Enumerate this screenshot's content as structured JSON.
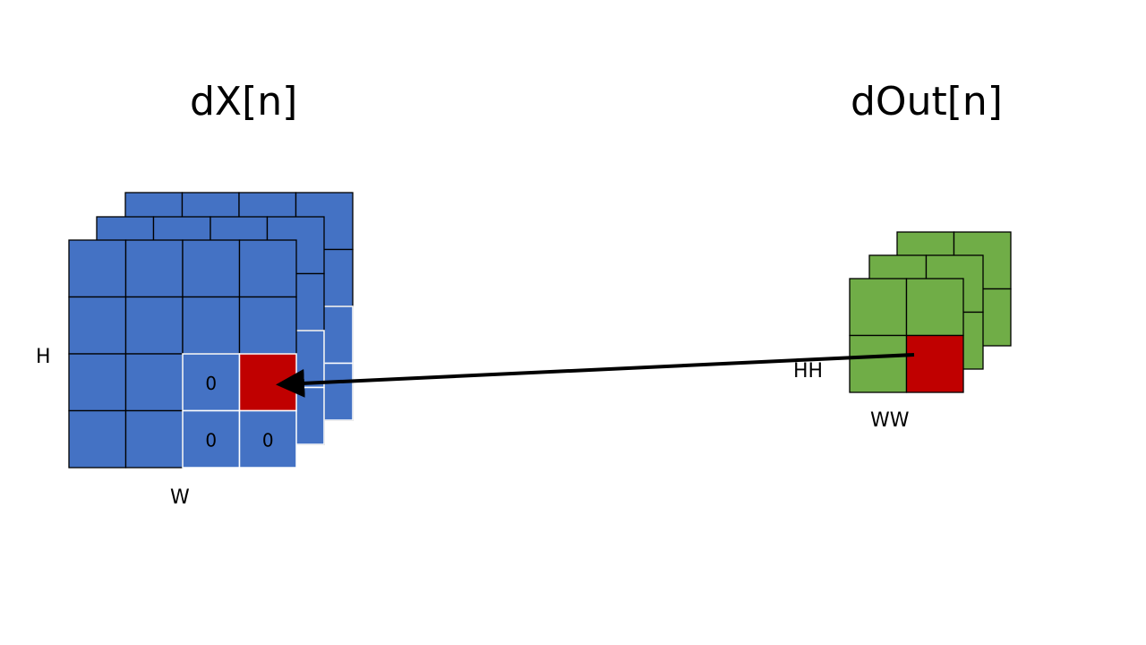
{
  "titles": {
    "left": "dX[n]",
    "right": "dOut[n]"
  },
  "dimension_labels": {
    "height": "H",
    "width": "W",
    "pool_height": "HH",
    "pool_width": "WW"
  },
  "dx_grid": {
    "rows": 4,
    "cols": 4,
    "layers": 3,
    "zero_label": "0",
    "zero_cells": [
      [
        2,
        2
      ],
      [
        3,
        2
      ],
      [
        3,
        3
      ]
    ],
    "highlight_cell": [
      2,
      3
    ]
  },
  "dout_grid": {
    "rows": 2,
    "cols": 2,
    "layers": 3,
    "highlight_cell": [
      1,
      1
    ]
  },
  "colors": {
    "dx_fill": "#4472C4",
    "dout_fill": "#70AD47",
    "highlight": "#C00000",
    "grid_line": "#000000",
    "window_line": "#FFFFFF",
    "arrow": "#000000"
  }
}
